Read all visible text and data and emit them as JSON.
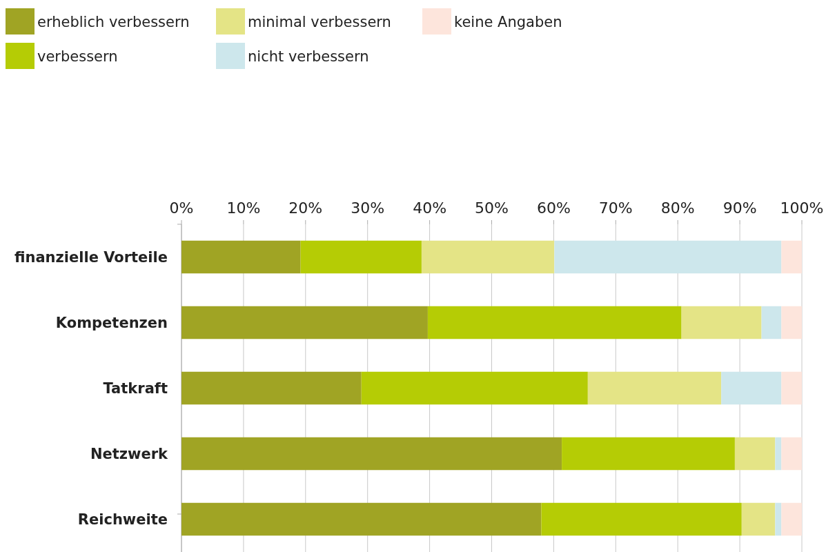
{
  "chart_data": {
    "type": "bar",
    "orientation": "horizontal",
    "stacked": true,
    "categories": [
      "finanzielle Vorteile",
      "Kompetenzen",
      "Tatkraft",
      "Netzwerk",
      "Reichweite"
    ],
    "series": [
      {
        "name": "erheblich verbessern",
        "color": "#a0a424",
        "values": [
          19.2,
          39.7,
          29.0,
          61.3,
          58.0
        ]
      },
      {
        "name": "verbessern",
        "color": "#b5cc05",
        "values": [
          19.5,
          40.9,
          36.5,
          27.9,
          32.3
        ]
      },
      {
        "name": "minimal verbessern",
        "color": "#e4e486",
        "values": [
          21.4,
          12.9,
          21.5,
          6.5,
          5.4
        ]
      },
      {
        "name": "nicht verbessern",
        "color": "#cde7ec",
        "values": [
          36.6,
          3.2,
          9.7,
          1.0,
          1.0
        ]
      },
      {
        "name": "keine Angaben",
        "color": "#fde5dc",
        "values": [
          3.3,
          3.3,
          3.3,
          3.3,
          3.3
        ]
      }
    ],
    "xlim": [
      0,
      100
    ],
    "xticks": [
      {
        "value": 0,
        "label": "0%"
      },
      {
        "value": 10,
        "label": "10%"
      },
      {
        "value": 20,
        "label": "20%"
      },
      {
        "value": 30,
        "label": "30%"
      },
      {
        "value": 40,
        "label": "40%"
      },
      {
        "value": 50,
        "label": "50%"
      },
      {
        "value": 60,
        "label": "60%"
      },
      {
        "value": 70,
        "label": "70%"
      },
      {
        "value": 80,
        "label": "80%"
      },
      {
        "value": 90,
        "label": "90%"
      },
      {
        "value": 100,
        "label": "100%"
      }
    ],
    "grid": "x",
    "legend": "top left"
  }
}
